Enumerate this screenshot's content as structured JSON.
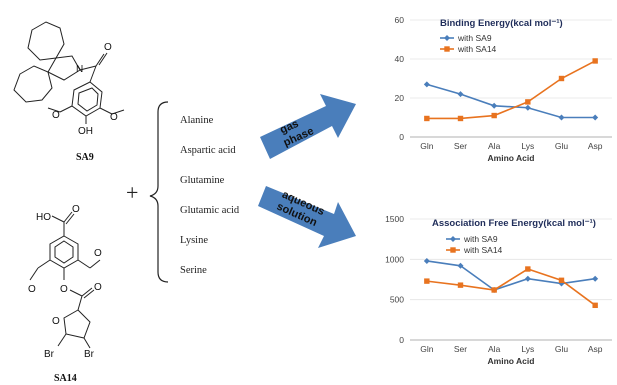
{
  "molecules": {
    "sa9": {
      "label": "SA9"
    },
    "sa14": {
      "label": "SA14"
    },
    "atoms": {
      "N": "N",
      "O": "O",
      "OH": "OH",
      "HO": "HO",
      "Br": "Br"
    }
  },
  "plus": "+",
  "amino_acids": [
    "Alanine",
    "Aspartic acid",
    "Glutamine",
    "Glutamic acid",
    "Lysine",
    "Serine"
  ],
  "arrows": {
    "gas": [
      "gas",
      "phase"
    ],
    "aqueous": [
      "aqueous",
      "solution"
    ]
  },
  "colors": {
    "sa9": "#4a7ebb",
    "sa14": "#e8731f",
    "arrow": "#4a7ebb"
  },
  "chart_data": [
    {
      "type": "line",
      "title": "Binding Energy(kcal mol⁻¹)",
      "xlabel": "Amino Acid",
      "ylabel": "",
      "categories": [
        "Gln",
        "Ser",
        "Ala",
        "Lys",
        "Glu",
        "Asp"
      ],
      "yticks": [
        0,
        20,
        40,
        60
      ],
      "ylim": [
        0,
        60
      ],
      "legend_position": "top-left",
      "series": [
        {
          "name": "with SA9",
          "marker": "diamond",
          "values": [
            27,
            22,
            16,
            15,
            10,
            10
          ]
        },
        {
          "name": "with SA14",
          "marker": "square",
          "values": [
            9.5,
            9.5,
            11,
            18,
            30,
            39
          ]
        }
      ]
    },
    {
      "type": "line",
      "title": "Association Free Energy(kcal mol⁻¹)",
      "xlabel": "Amino Acid",
      "ylabel": "",
      "categories": [
        "Gln",
        "Ser",
        "Ala",
        "Lys",
        "Glu",
        "Asp"
      ],
      "yticks": [
        0,
        500,
        1000,
        1500
      ],
      "ylim": [
        0,
        1500
      ],
      "legend_position": "top-left",
      "series": [
        {
          "name": "with SA9",
          "marker": "diamond",
          "values": [
            980,
            920,
            620,
            760,
            700,
            760
          ]
        },
        {
          "name": "with SA14",
          "marker": "square",
          "values": [
            730,
            680,
            620,
            880,
            740,
            430
          ]
        }
      ]
    }
  ]
}
